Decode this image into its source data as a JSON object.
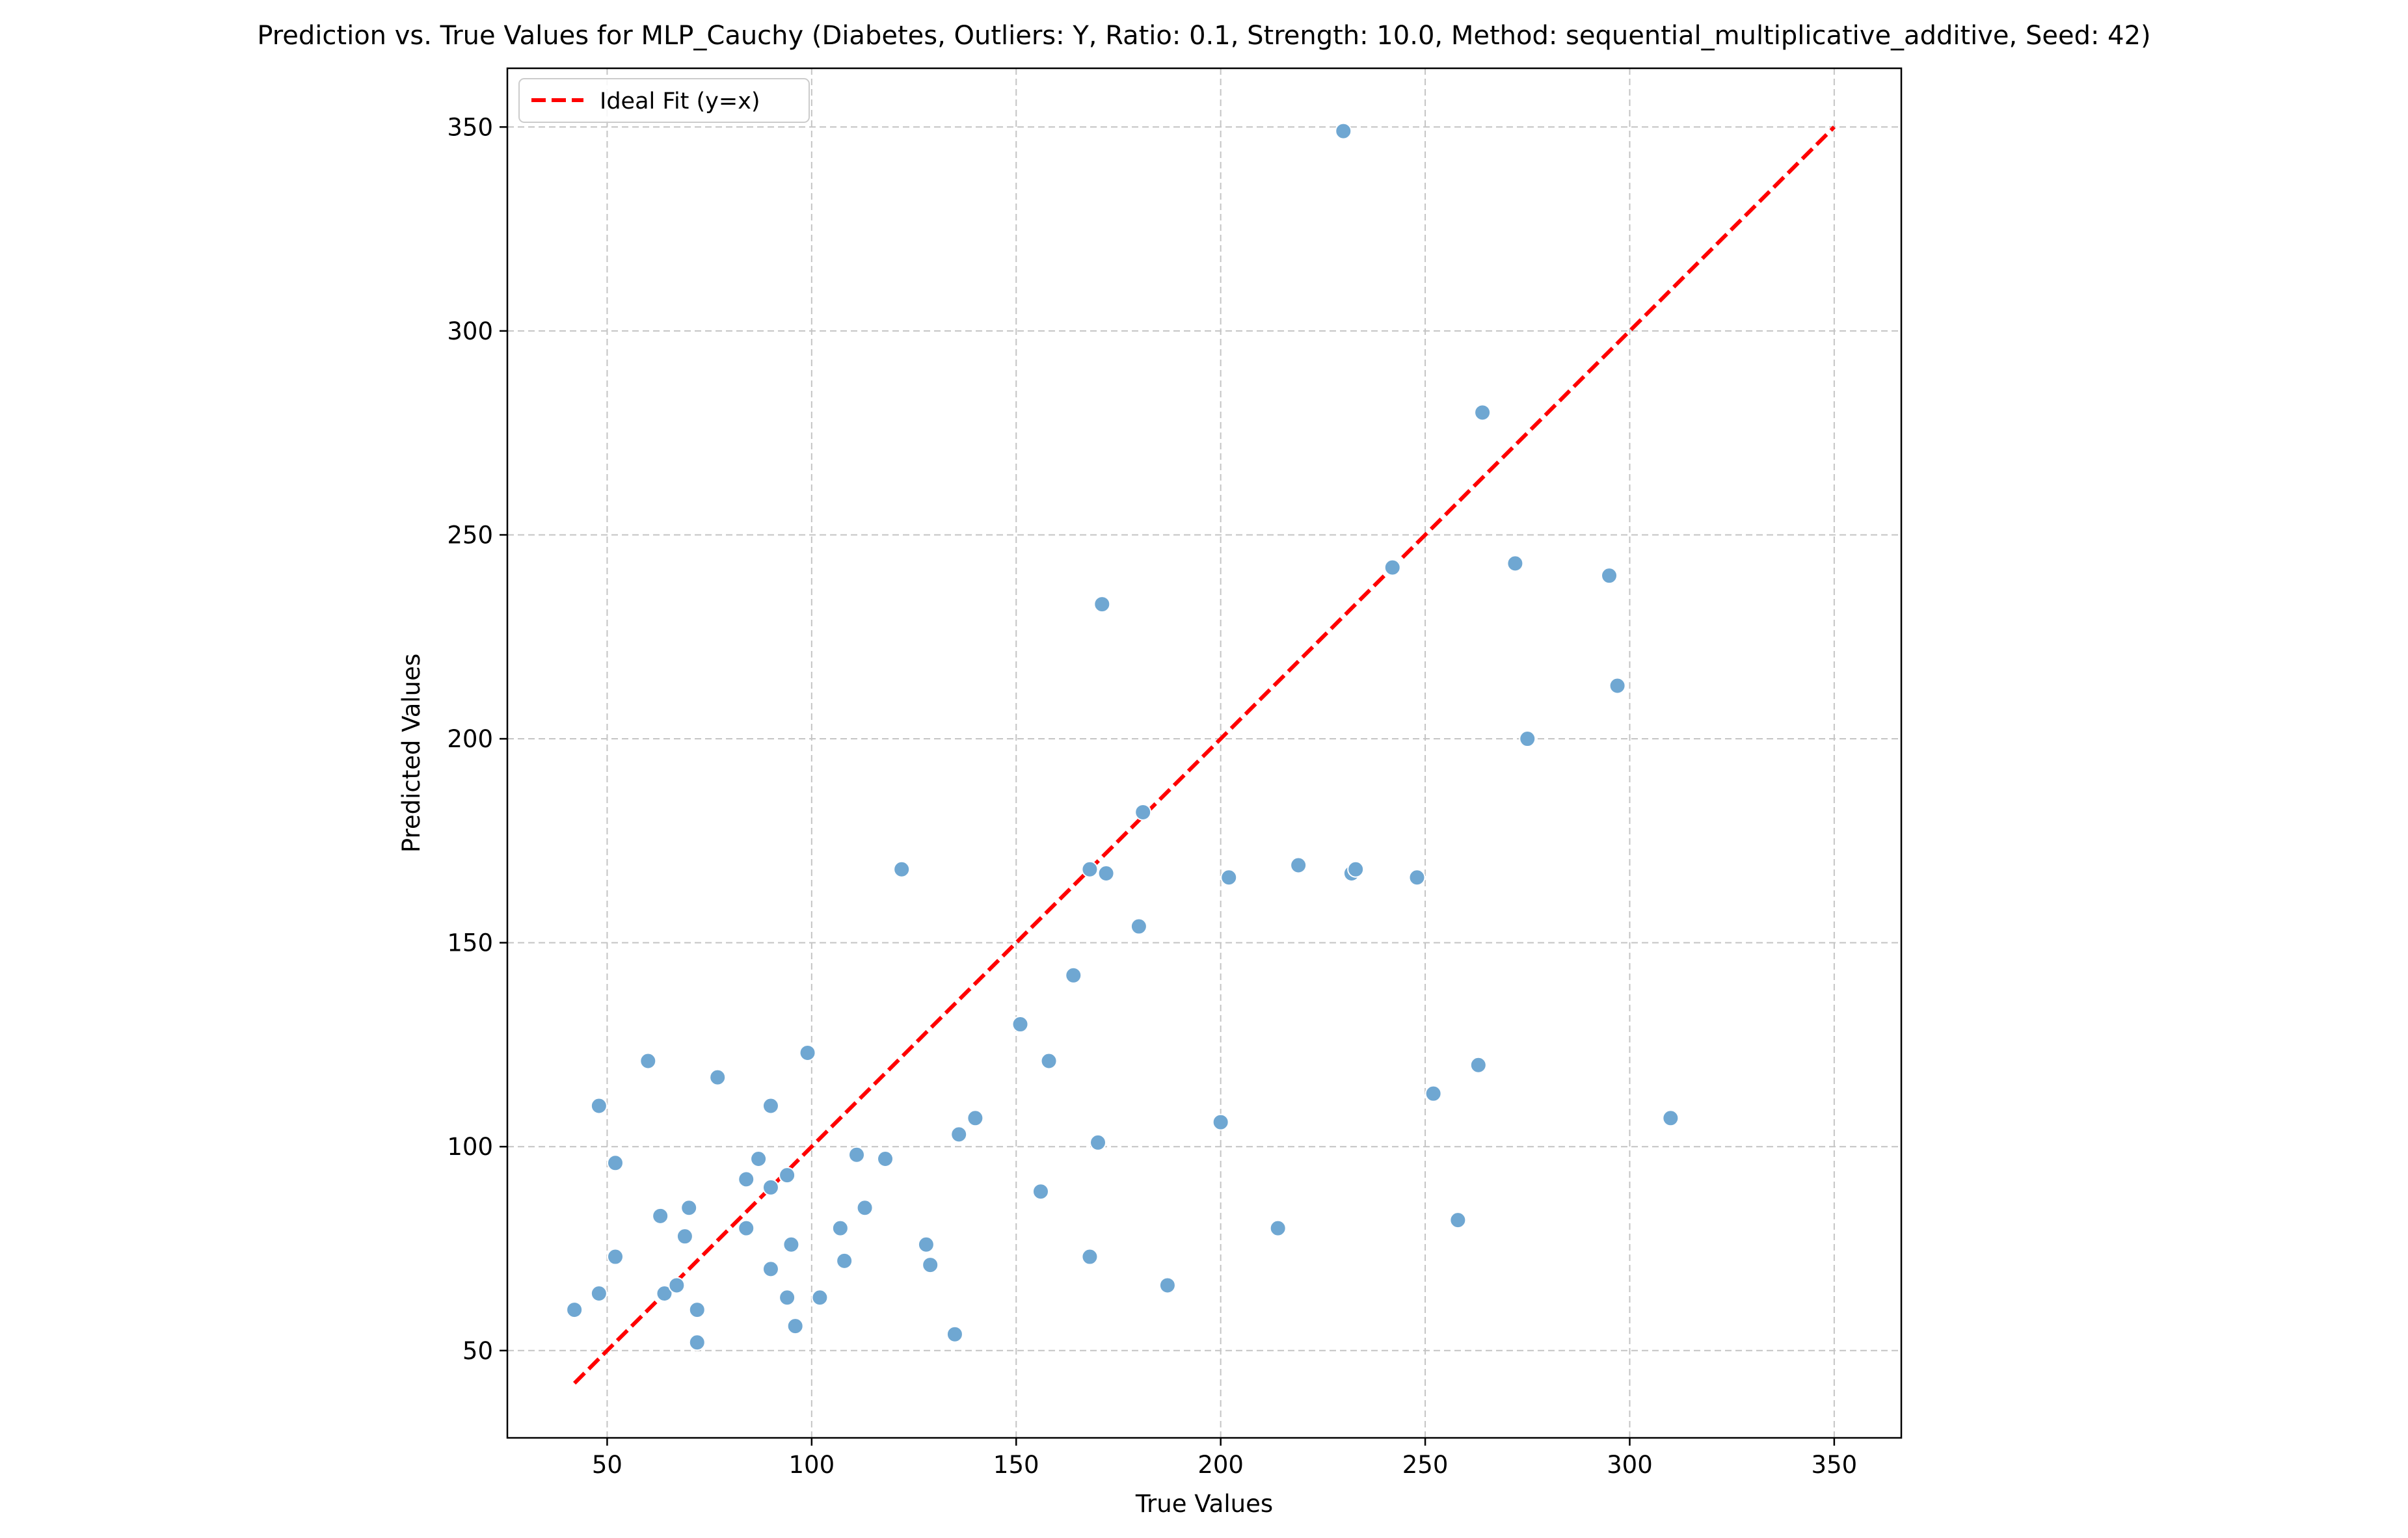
{
  "chart_data": {
    "type": "scatter",
    "title": "Prediction vs. True Values for MLP_Cauchy (Diabetes, Outliers: Y, Ratio: 0.1, Strength: 10.0, Method: sequential_multiplicative_additive, Seed: 42)",
    "xlabel": "True Values",
    "ylabel": "Predicted Values",
    "xlim": [
      25.6,
      366.4
    ],
    "ylim": [
      28.6,
      364.4
    ],
    "xticks": [
      50,
      100,
      150,
      200,
      250,
      300,
      350
    ],
    "yticks": [
      50,
      100,
      150,
      200,
      250,
      300,
      350
    ],
    "grid": true,
    "legend": {
      "position": "top-left",
      "entries": [
        "Ideal Fit (y=x)"
      ]
    },
    "colors": {
      "points": "#6fa7d2",
      "ideal_line": "#ff0000",
      "grid": "#c4c4c4",
      "axes": "#000000"
    },
    "ideal_line": {
      "x": [
        42,
        350
      ],
      "y": [
        42,
        350
      ]
    },
    "points": [
      [
        42,
        60
      ],
      [
        48,
        64
      ],
      [
        48,
        110
      ],
      [
        52,
        96
      ],
      [
        52,
        73
      ],
      [
        60,
        121
      ],
      [
        63,
        83
      ],
      [
        64,
        64
      ],
      [
        67,
        66
      ],
      [
        69,
        78
      ],
      [
        70,
        85
      ],
      [
        72,
        60
      ],
      [
        72,
        52
      ],
      [
        77,
        117
      ],
      [
        84,
        92
      ],
      [
        84,
        80
      ],
      [
        87,
        97
      ],
      [
        90,
        110
      ],
      [
        90,
        90
      ],
      [
        90,
        70
      ],
      [
        94,
        93
      ],
      [
        94,
        63
      ],
      [
        95,
        76
      ],
      [
        96,
        56
      ],
      [
        99,
        123
      ],
      [
        102,
        63
      ],
      [
        107,
        80
      ],
      [
        108,
        72
      ],
      [
        111,
        98
      ],
      [
        113,
        85
      ],
      [
        118,
        97
      ],
      [
        122,
        168
      ],
      [
        128,
        76
      ],
      [
        129,
        71
      ],
      [
        135,
        54
      ],
      [
        136,
        103
      ],
      [
        140,
        107
      ],
      [
        151,
        130
      ],
      [
        156,
        89
      ],
      [
        158,
        121
      ],
      [
        164,
        142
      ],
      [
        168,
        168
      ],
      [
        168,
        73
      ],
      [
        170,
        101
      ],
      [
        171,
        233
      ],
      [
        172,
        167
      ],
      [
        180,
        154
      ],
      [
        181,
        182
      ],
      [
        187,
        66
      ],
      [
        200,
        106
      ],
      [
        202,
        166
      ],
      [
        214,
        80
      ],
      [
        219,
        169
      ],
      [
        230,
        349
      ],
      [
        232,
        167
      ],
      [
        233,
        168
      ],
      [
        242,
        242
      ],
      [
        248,
        166
      ],
      [
        252,
        113
      ],
      [
        258,
        82
      ],
      [
        263,
        120
      ],
      [
        264,
        280
      ],
      [
        272,
        243
      ],
      [
        275,
        200
      ],
      [
        295,
        240
      ],
      [
        297,
        213
      ],
      [
        310,
        107
      ]
    ]
  }
}
